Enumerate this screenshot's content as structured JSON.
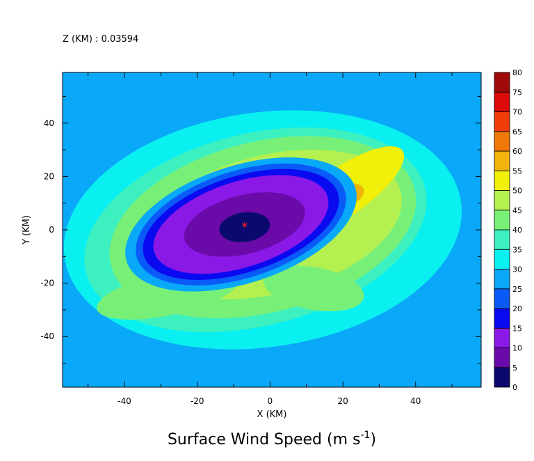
{
  "header": {
    "zlevel": "Z (KM) : 0.03594"
  },
  "chart_data": {
    "type": "heatmap",
    "title": "Surface Wind Speed (m s",
    "title_superscript": "-1",
    "title_suffix": ")",
    "xlabel": "X (KM)",
    "ylabel": "Y (KM)",
    "xlim": [
      -57,
      58
    ],
    "ylim": [
      -59,
      59
    ],
    "x_ticks": [
      -40,
      -20,
      0,
      20,
      40
    ],
    "y_ticks": [
      -40,
      -20,
      0,
      20,
      40
    ],
    "x_tick_labels": [
      "-40",
      "-20",
      "0",
      "20",
      "40"
    ],
    "y_tick_labels": [
      "-40",
      "-20",
      "0",
      "20",
      "40"
    ],
    "center_marker": {
      "symbol": "*",
      "x": -7,
      "y": 1,
      "color": "#ff2020"
    },
    "colorbar": {
      "levels": [
        0,
        5,
        10,
        15,
        20,
        25,
        30,
        35,
        40,
        45,
        50,
        55,
        60,
        65,
        70,
        75,
        80
      ],
      "labels": [
        "0",
        "5",
        "10",
        "15",
        "20",
        "25",
        "30",
        "35",
        "40",
        "45",
        "50",
        "55",
        "60",
        "65",
        "70",
        "75",
        "80"
      ],
      "colors": [
        "#0a0a6e",
        "#6a0aa8",
        "#8a18e6",
        "#0a0af0",
        "#0a5af8",
        "#0aa8f8",
        "#0af0f0",
        "#3cf0c0",
        "#78f078",
        "#b4f050",
        "#f0f00a",
        "#f0b40a",
        "#f07808",
        "#f03c08",
        "#dc0a0a",
        "#a00a0a"
      ]
    },
    "regions": [
      {
        "name": "ring-0-5",
        "level": 5,
        "shape": "ellipse",
        "cx": -7,
        "cy": 1,
        "rx": 7,
        "ry": 5.5,
        "rot": -8
      },
      {
        "name": "ring-5-10",
        "level": 10,
        "shape": "ellipse",
        "cx": -7,
        "cy": 2,
        "rx": 17,
        "ry": 11,
        "rot": -14
      },
      {
        "name": "ring-10-15",
        "level": 15,
        "shape": "ellipse",
        "cx": -8,
        "cy": 2,
        "rx": 25,
        "ry": 16,
        "rot": -18
      },
      {
        "name": "ring-15-20",
        "level": 20,
        "shape": "ellipse",
        "cx": -8,
        "cy": 2,
        "rx": 28,
        "ry": 18,
        "rot": -18
      },
      {
        "name": "ring-20-25",
        "level": 25,
        "shape": "ellipse",
        "cx": -8,
        "cy": 2,
        "rx": 30,
        "ry": 20,
        "rot": -18
      },
      {
        "name": "ring-25-30",
        "level": 30,
        "shape": "ellipse",
        "cx": -8,
        "cy": 2,
        "rx": 33,
        "ry": 22,
        "rot": -18
      },
      {
        "name": "band-35-40",
        "level": 40,
        "shape": "ellipse",
        "cx": -4,
        "cy": 0,
        "rx": 48,
        "ry": 36,
        "rot": -14
      },
      {
        "name": "band-40-45",
        "level": 45,
        "shape": "ellipse",
        "cx": -2,
        "cy": 1,
        "rx": 43,
        "ry": 32,
        "rot": -14
      },
      {
        "name": "band-45-50",
        "level": 50,
        "shape": "ellipse",
        "cx": 0,
        "cy": 2,
        "rx": 37,
        "ry": 26,
        "rot": -14
      },
      {
        "name": "outer-30-35",
        "level": 35,
        "shape": "ellipse",
        "cx": -2,
        "cy": 0,
        "rx": 55,
        "ry": 44,
        "rot": -8
      },
      {
        "name": "max-50-55",
        "level": 55,
        "shape": "ellipse",
        "cx": 20,
        "cy": 14,
        "rx": 20,
        "ry": 9,
        "rot": -35
      },
      {
        "name": "max-55-60",
        "level": 60,
        "shape": "ellipse",
        "cx": 21,
        "cy": 13,
        "rx": 5,
        "ry": 4,
        "rot": -20
      },
      {
        "name": "se-40-45",
        "level": 45,
        "shape": "ellipse",
        "cx": 12,
        "cy": -22,
        "rx": 14,
        "ry": 8,
        "rot": 10
      },
      {
        "name": "sw-40-45",
        "level": 45,
        "shape": "ellipse",
        "cx": -28,
        "cy": -24,
        "rx": 20,
        "ry": 8,
        "rot": -12
      }
    ]
  }
}
